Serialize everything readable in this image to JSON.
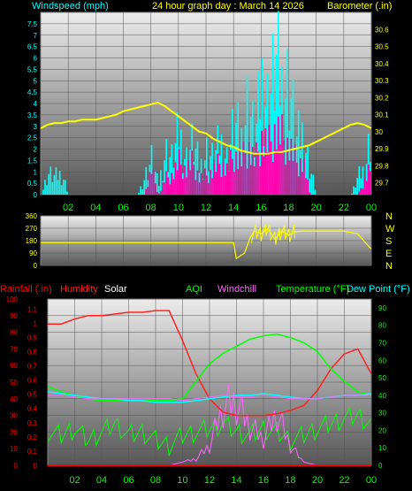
{
  "header": {
    "left_title": "Windspeed (mph)",
    "center_title": "24 hour graph day : March 14 2026",
    "right_title": "Barometer (.in)"
  },
  "colors": {
    "wind": "#00ffff",
    "gust": "#ff00aa",
    "baro": "#ffff00",
    "dir": "#ffff00",
    "rain": "#ff0000",
    "humidity": "#ff2020",
    "solar": "#ffffff",
    "aqi": "#00ff00",
    "windchill": "#ff66ff",
    "temp": "#00ff00",
    "dew": "#00ffff",
    "plot_bg_top": "#e8e8e8",
    "plot_bg_bottom": "#5a5a5a"
  },
  "x_ticks": [
    "02",
    "04",
    "06",
    "08",
    "10",
    "12",
    "14",
    "16",
    "18",
    "20",
    "22",
    "00"
  ],
  "direction_labels": [
    "N",
    "W",
    "S",
    "E",
    "N"
  ],
  "bottom_legend": {
    "rain": "Rainfall (.in)",
    "humidity": "Humidity",
    "solar": "Solar",
    "aqi": "AQI",
    "windchill": "Windchill",
    "temp": "Temperature (°F)",
    "dew": "Dew Point (°F)"
  },
  "chart_data": [
    {
      "type": "bar",
      "y_left_ticks": [
        "0",
        "0.5",
        "1",
        "1.5",
        "2",
        "2.5",
        "3",
        "3.5",
        "4",
        "4.5",
        "5",
        "5.5",
        "6",
        "6.5",
        "7",
        "7.5"
      ],
      "y_right_ticks": [
        "29.7",
        "29.8",
        "29.9",
        "30",
        "30.1",
        "30.2",
        "30.3",
        "30.4",
        "30.5",
        "30.6"
      ],
      "ylim_left": [
        0,
        8
      ],
      "ylim_right": [
        29.63,
        30.7
      ],
      "x_hours": [
        0,
        0.5,
        1,
        1.5,
        2,
        2.5,
        3,
        3.5,
        4,
        4.5,
        5,
        5.5,
        6,
        6.5,
        7,
        7.5,
        8,
        8.5,
        9,
        9.5,
        10,
        10.5,
        11,
        11.5,
        12,
        12.5,
        13,
        13.5,
        14,
        14.5,
        15,
        15.5,
        16,
        16.5,
        17,
        17.5,
        18,
        18.5,
        19,
        19.5,
        20,
        20.5,
        21,
        21.5,
        22,
        22.5,
        23,
        23.5,
        24
      ],
      "wind_mph": [
        0,
        1.2,
        1,
        1.2,
        0,
        0,
        0,
        0,
        0,
        0,
        0,
        0,
        0,
        0,
        0,
        1,
        2,
        0.5,
        2.5,
        2,
        3.5,
        2,
        3,
        1.5,
        2.5,
        2,
        3,
        2,
        4,
        3,
        5.5,
        3,
        6.5,
        5,
        7.5,
        6,
        6.5,
        3,
        3.5,
        1.5,
        0,
        0,
        0,
        0,
        0,
        0,
        1,
        1.5,
        4
      ],
      "gust_mph": [
        0,
        0,
        0,
        0,
        0,
        0,
        0,
        0,
        0,
        0,
        0,
        0,
        0,
        0,
        0,
        0,
        1.5,
        0,
        1,
        1.2,
        2,
        1.5,
        2,
        1,
        1.2,
        1.5,
        2,
        1.5,
        2.5,
        2,
        3,
        2,
        3.5,
        3,
        4,
        3.5,
        3,
        2,
        2,
        0,
        0,
        0,
        0,
        0,
        0,
        0,
        0,
        1,
        2
      ],
      "baro_in": [
        30.02,
        30.04,
        30.05,
        30.05,
        30.06,
        30.06,
        30.07,
        30.07,
        30.07,
        30.08,
        30.09,
        30.1,
        30.12,
        30.13,
        30.14,
        30.15,
        30.16,
        30.17,
        30.15,
        30.12,
        30.09,
        30.06,
        30.03,
        30.0,
        29.99,
        29.96,
        29.94,
        29.92,
        29.91,
        29.89,
        29.88,
        29.87,
        29.87,
        29.87,
        29.88,
        29.88,
        29.89,
        29.9,
        29.91,
        29.92,
        29.94,
        29.96,
        29.98,
        30.0,
        30.02,
        30.04,
        30.05,
        30.04,
        30.02
      ]
    },
    {
      "type": "line",
      "y_ticks": [
        "0",
        "90",
        "180",
        "270",
        "360"
      ],
      "ylim": [
        0,
        360
      ],
      "x_hours": [
        0,
        14,
        14.2,
        14.8,
        15.2,
        15.5,
        16,
        16.5,
        17,
        17.5,
        18,
        18.5,
        19,
        20,
        21,
        22,
        23,
        23.8,
        24
      ],
      "direction_deg": [
        165,
        165,
        50,
        90,
        200,
        250,
        230,
        270,
        190,
        250,
        220,
        245,
        250,
        250,
        250,
        250,
        230,
        140,
        120
      ]
    },
    {
      "type": "line",
      "y_left_ticks": [
        "0",
        "10",
        "20",
        "30",
        "40",
        "50",
        "60",
        "70",
        "80",
        "90",
        "100"
      ],
      "rain_ticks": [
        "0",
        "0.1",
        "0.2",
        "0.3",
        "0.4",
        "0.5",
        "0.6",
        "0.7",
        "0.8",
        "0.9",
        "1",
        "1.1"
      ],
      "y_right_ticks": [
        "0",
        "10",
        "20",
        "30",
        "40",
        "50",
        "60",
        "70",
        "80",
        "90"
      ],
      "ylim_left": [
        0,
        100
      ],
      "ylim_right": [
        0,
        95
      ],
      "x_hours": [
        0,
        1,
        2,
        3,
        4,
        5,
        6,
        7,
        8,
        9,
        10,
        11,
        12,
        13,
        14,
        15,
        16,
        17,
        18,
        19,
        20,
        21,
        22,
        23,
        24
      ],
      "humidity_pct": [
        85,
        85,
        88,
        90,
        90,
        91,
        92,
        92,
        93,
        93,
        75,
        55,
        40,
        32,
        30,
        30,
        30,
        31,
        33,
        36,
        45,
        58,
        67,
        70,
        55
      ],
      "rain_in": [
        0,
        0,
        0,
        0,
        0,
        0,
        0,
        0,
        0,
        0,
        0,
        0,
        0,
        0,
        0,
        0,
        0,
        0,
        0,
        0,
        0,
        0,
        0,
        0,
        0
      ],
      "solar_pct": [
        0,
        0,
        0,
        0,
        0,
        0,
        0,
        0,
        0,
        0,
        2,
        5,
        15,
        45,
        48,
        30,
        20,
        40,
        15,
        2,
        0,
        0,
        0,
        0,
        0
      ],
      "aqi_pct": [
        20,
        18,
        22,
        15,
        20,
        25,
        18,
        20,
        15,
        12,
        18,
        20,
        22,
        25,
        20,
        18,
        22,
        20,
        15,
        18,
        22,
        25,
        28,
        30,
        25
      ],
      "windchill_f": [
        40,
        40,
        39,
        38,
        38,
        38,
        38,
        38,
        38,
        38,
        37,
        38,
        39,
        40,
        39,
        39,
        40,
        39,
        38,
        38,
        38,
        39,
        40,
        40,
        40
      ],
      "temp_f": [
        45,
        42,
        40,
        38,
        37,
        37,
        37,
        37,
        37,
        37,
        38,
        48,
        58,
        64,
        68,
        72,
        74,
        75,
        73,
        70,
        65,
        55,
        48,
        42,
        40
      ],
      "dew_f": [
        42,
        41,
        40,
        39,
        38,
        38,
        37,
        37,
        36,
        36,
        36,
        37,
        38,
        39,
        40,
        40,
        41,
        40,
        39,
        38,
        38,
        39,
        40,
        40,
        41
      ]
    }
  ]
}
